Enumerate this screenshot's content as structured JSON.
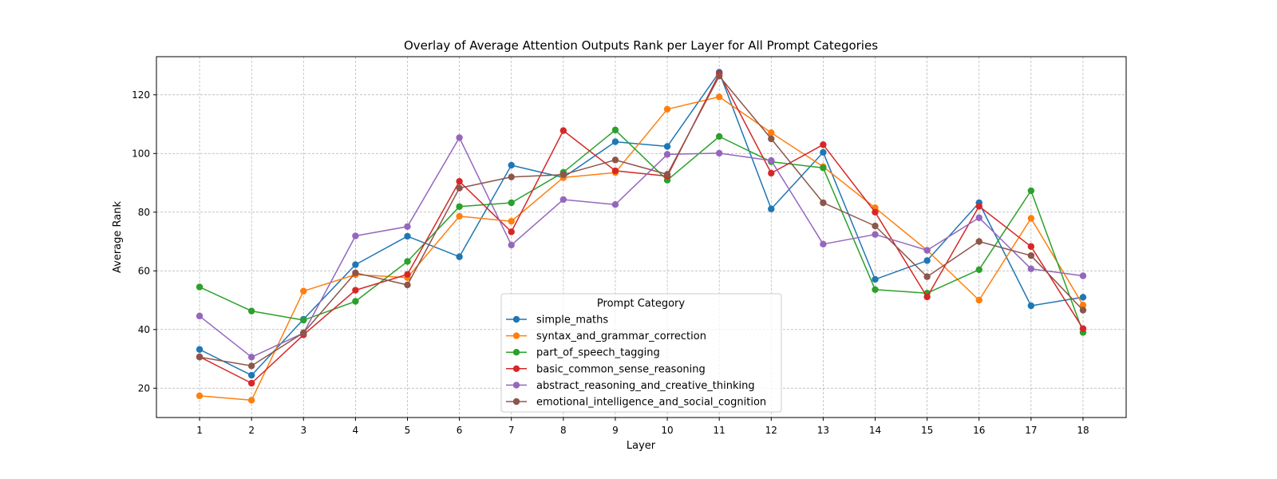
{
  "chart_data": {
    "type": "line",
    "title": "Overlay of Average Attention Outputs Rank per Layer for All Prompt Categories",
    "xlabel": "Layer",
    "ylabel": "Average Rank",
    "x": [
      1,
      2,
      3,
      4,
      5,
      6,
      7,
      8,
      9,
      10,
      11,
      12,
      13,
      14,
      15,
      16,
      17,
      18
    ],
    "xlim": [
      0.17,
      18.83
    ],
    "ylim": [
      10,
      133
    ],
    "yticks": [
      20,
      40,
      60,
      80,
      100,
      120
    ],
    "grid": true,
    "legend_title": "Prompt Category",
    "legend_position": "lower-center",
    "series": [
      {
        "name": "simple_maths",
        "color": "#1f77b4",
        "values": [
          33.2,
          24.4,
          43.5,
          62.1,
          71.8,
          64.8,
          96.0,
          91.8,
          104.0,
          102.4,
          127.7,
          81.1,
          100.4,
          57.1,
          63.5,
          83.2,
          48.1,
          51.0
        ]
      },
      {
        "name": "syntax_and_grammar_correction",
        "color": "#ff7f0e",
        "values": [
          17.4,
          15.9,
          53.1,
          58.7,
          57.7,
          78.6,
          76.9,
          91.8,
          93.5,
          115.1,
          119.3,
          107.1,
          95.5,
          81.5,
          67.0,
          50.0,
          77.9,
          48.3
        ]
      },
      {
        "name": "part_of_speech_tagging",
        "color": "#2ca02c",
        "values": [
          54.5,
          46.3,
          43.2,
          49.6,
          63.2,
          81.9,
          83.2,
          93.6,
          108.0,
          90.9,
          105.8,
          97.2,
          95.1,
          53.6,
          52.4,
          60.4,
          87.3,
          39.0
        ]
      },
      {
        "name": "basic_common_sense_reasoning",
        "color": "#d62728",
        "values": [
          30.7,
          21.7,
          38.2,
          53.4,
          58.8,
          90.5,
          73.3,
          107.8,
          94.1,
          92.3,
          127.2,
          93.3,
          103.0,
          80.0,
          51.1,
          82.0,
          68.3,
          40.3
        ]
      },
      {
        "name": "abstract_reasoning_and_creative_thinking",
        "color": "#9467bd",
        "values": [
          44.6,
          30.6,
          38.8,
          71.9,
          75.1,
          105.4,
          68.8,
          84.3,
          82.6,
          99.7,
          100.1,
          97.6,
          69.1,
          72.4,
          67.0,
          78.1,
          60.7,
          58.3
        ]
      },
      {
        "name": "emotional_intelligence_and_social_cognition",
        "color": "#8c564b",
        "values": [
          30.6,
          27.6,
          38.9,
          59.3,
          55.2,
          88.2,
          92.0,
          92.8,
          97.8,
          92.9,
          126.4,
          105.0,
          83.2,
          75.3,
          58.0,
          70.0,
          65.2,
          46.6
        ]
      }
    ]
  }
}
